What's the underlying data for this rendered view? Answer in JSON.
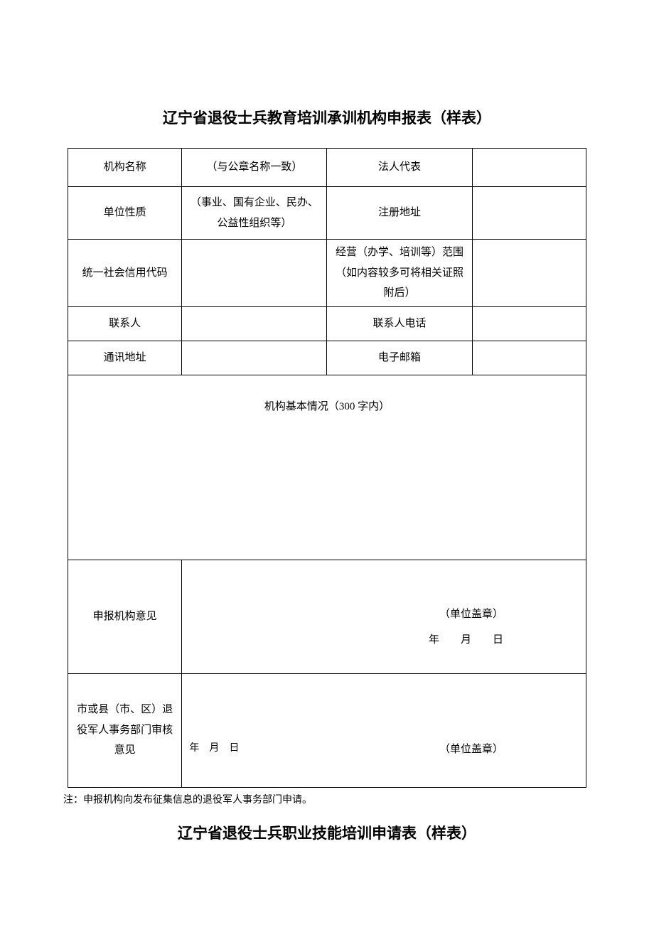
{
  "titles": {
    "main": "辽宁省退役士兵教育培训承训机构申报表（样表）",
    "second": "辽宁省退役士兵职业技能培训申请表（样表）"
  },
  "rows": {
    "r1c1": "机构名称",
    "r1c2": "（与公章名称一致）",
    "r1c3": "法人代表",
    "r2c1": "单位性质",
    "r2c2": "（事业、国有企业、民办、公益性组织等）",
    "r2c3": "注册地址",
    "r3c1": "统一社会信用代码",
    "r3c3": "经营（办学、培训等）范围（如内容较多可将相关证照附后）",
    "r4c1": "联系人",
    "r4c3": "联系人电话",
    "r5c1": "通讯地址",
    "r5c3": "电子邮箱",
    "basic": "机构基本情况（300 字内）",
    "op1label": "申报机构意见",
    "op2label": "市或县（市、区）退役军人事务部门审核意见"
  },
  "stamp": {
    "seal": "（单位盖章）",
    "dateline": "年　　月　　日",
    "dateline2": "年月日"
  },
  "note": "注：申报机构向发布征集信息的退役军人事务部门申请。"
}
